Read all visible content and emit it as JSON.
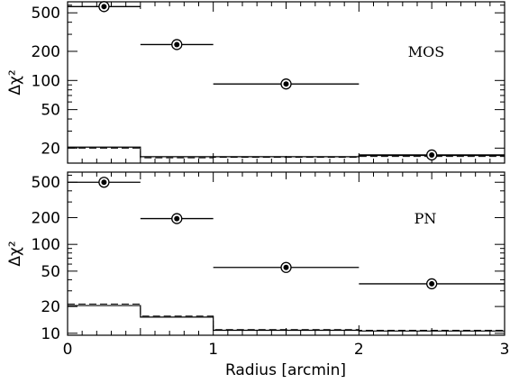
{
  "chart_data": [
    {
      "type": "scatter",
      "panel_label": "MOS",
      "ylabel": "Δχ²",
      "y_scale": "log",
      "xlim": [
        0,
        3
      ],
      "ylim": [
        14,
        650
      ],
      "yticks": [
        20,
        50,
        100,
        200,
        500
      ],
      "ytick_labels": [
        "20",
        "50",
        "100",
        "200",
        "500"
      ],
      "points": [
        {
          "x": 0.25,
          "y": 580,
          "x_lo": 0,
          "x_hi": 0.5
        },
        {
          "x": 0.75,
          "y": 235,
          "x_lo": 0.5,
          "x_hi": 1
        },
        {
          "x": 1.5,
          "y": 92,
          "x_lo": 1,
          "x_hi": 2
        },
        {
          "x": 2.5,
          "y": 17,
          "x_lo": 2,
          "x_hi": 3
        }
      ],
      "steps_solid": [
        {
          "x0": 0,
          "x1": 0.5,
          "y": 20.5
        },
        {
          "x0": 0.5,
          "x1": 1,
          "y": 16.3
        },
        {
          "x0": 1,
          "x1": 2,
          "y": 16.3
        },
        {
          "x0": 2,
          "x1": 3,
          "y": 16.8
        }
      ],
      "steps_dashed": [
        {
          "x0": 0,
          "x1": 0.5,
          "y": 20.0
        },
        {
          "x0": 0.5,
          "x1": 1,
          "y": 15.9
        },
        {
          "x0": 1,
          "x1": 2,
          "y": 16.1
        },
        {
          "x0": 2,
          "x1": 3,
          "y": 16.4
        }
      ]
    },
    {
      "type": "scatter",
      "panel_label": "PN",
      "ylabel": "Δχ²",
      "xlabel": "Radius [arcmin]",
      "y_scale": "log",
      "xlim": [
        0,
        3
      ],
      "ylim": [
        9.5,
        650
      ],
      "yticks": [
        10,
        20,
        50,
        100,
        200,
        500
      ],
      "ytick_labels": [
        "10",
        "20",
        "50",
        "100",
        "200",
        "500"
      ],
      "xticks": [
        0,
        1,
        2,
        3
      ],
      "xtick_labels": [
        "0",
        "1",
        "2",
        "3"
      ],
      "points": [
        {
          "x": 0.25,
          "y": 500,
          "x_lo": 0,
          "x_hi": 0.5
        },
        {
          "x": 0.75,
          "y": 195,
          "x_lo": 0.5,
          "x_hi": 1
        },
        {
          "x": 1.5,
          "y": 55,
          "x_lo": 1,
          "x_hi": 2
        },
        {
          "x": 2.5,
          "y": 36,
          "x_lo": 2,
          "x_hi": 3
        }
      ],
      "steps_solid": [
        {
          "x0": 0,
          "x1": 0.5,
          "y": 20.5
        },
        {
          "x0": 0.5,
          "x1": 1,
          "y": 15.2
        },
        {
          "x0": 1,
          "x1": 2,
          "y": 10.8
        },
        {
          "x0": 2,
          "x1": 3,
          "y": 10.6
        }
      ],
      "steps_dashed": [
        {
          "x0": 0,
          "x1": 0.5,
          "y": 21.3
        },
        {
          "x0": 0.5,
          "x1": 1,
          "y": 15.6
        },
        {
          "x0": 1,
          "x1": 2,
          "y": 11.0
        },
        {
          "x0": 2,
          "x1": 3,
          "y": 10.8
        }
      ]
    }
  ]
}
